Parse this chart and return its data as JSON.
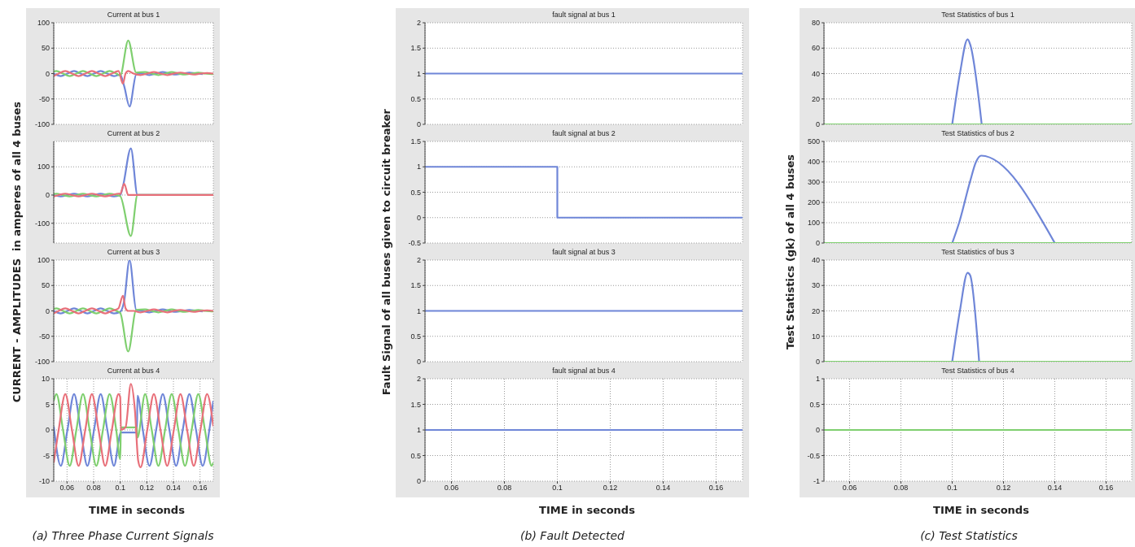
{
  "chart_data": [
    {
      "type": "line",
      "title": "Current at bus 1",
      "ylabel": "CURRENT - AMPLITUDES  in amperes of all 4 buses",
      "xlim": [
        0.05,
        0.17
      ],
      "xticks": [
        0.06,
        0.08,
        0.1,
        0.12,
        0.14,
        0.16
      ],
      "ylim": [
        -100,
        100
      ],
      "yticks": [
        -100,
        -50,
        0,
        50,
        100
      ],
      "grid": true,
      "tick_labels": "y",
      "series": [
        {
          "color": "#6f86d8",
          "x": [
            0.05,
            0.0553,
            0.0603,
            0.0653,
            0.0703,
            0.0753,
            0.0803,
            0.0853,
            0.0903,
            0.0953,
            0.1,
            0.103,
            0.107,
            0.112,
            0.117,
            0.122,
            0.127,
            0.132,
            0.137,
            0.142,
            0.147,
            0.152,
            0.157,
            0.162
          ],
          "values": [
            0,
            -5,
            0,
            5,
            0,
            -5,
            0,
            5,
            0,
            -5,
            -2,
            -25,
            -65,
            -2,
            0,
            -3,
            0,
            3,
            0,
            -2,
            0,
            2,
            0,
            -1
          ]
        },
        {
          "color": "#7fcf6f",
          "x": [
            0.05,
            0.052,
            0.057,
            0.062,
            0.067,
            0.072,
            0.077,
            0.082,
            0.087,
            0.092,
            0.097,
            0.1,
            0.106,
            0.112,
            0.1187,
            0.1237,
            0.1287,
            0.1337,
            0.1387,
            0.1437,
            0.1487,
            0.1537,
            0.1587,
            0.1637,
            0.1687,
            0.17
          ],
          "values": [
            4,
            5,
            0,
            -5,
            0,
            5,
            0,
            -5,
            0,
            5,
            0,
            -4,
            65,
            2,
            3,
            0,
            -3,
            0,
            3,
            0,
            -2,
            0,
            2,
            0,
            -1,
            -1
          ]
        },
        {
          "color": "#e8707a",
          "x": [
            0.05,
            0.0537,
            0.0587,
            0.0637,
            0.0687,
            0.0737,
            0.0787,
            0.0837,
            0.0887,
            0.0937,
            0.0987,
            0.102,
            0.104,
            0.106,
            0.11,
            0.1153,
            0.1203,
            0.1253,
            0.1303,
            0.1353,
            0.1403,
            0.1453,
            0.1503,
            0.1553,
            0.1603,
            0.1653,
            0.17
          ],
          "values": [
            -5,
            0,
            5,
            0,
            -5,
            0,
            5,
            0,
            -5,
            0,
            5,
            -20,
            0,
            5,
            0,
            -3,
            0,
            3,
            0,
            -3,
            0,
            2,
            0,
            -2,
            0,
            1,
            0
          ]
        }
      ]
    },
    {
      "type": "line",
      "title": "Current at bus 2",
      "xlim": [
        0.05,
        0.17
      ],
      "xticks": [
        0.06,
        0.08,
        0.1,
        0.12,
        0.14,
        0.16
      ],
      "ylim": [
        -170,
        190
      ],
      "yticks": [
        -100,
        0,
        100
      ],
      "grid": true,
      "tick_labels": "y",
      "series": [
        {
          "color": "#6f86d8",
          "x": [
            0.05,
            0.0553,
            0.0603,
            0.0653,
            0.0703,
            0.0753,
            0.0803,
            0.0853,
            0.0903,
            0.0953,
            0.1,
            0.102,
            0.108,
            0.113,
            0.17
          ],
          "values": [
            0,
            -5,
            0,
            5,
            0,
            -5,
            0,
            5,
            0,
            -5,
            0,
            30,
            165,
            0,
            0
          ]
        },
        {
          "color": "#7fcf6f",
          "x": [
            0.05,
            0.052,
            0.057,
            0.062,
            0.067,
            0.072,
            0.077,
            0.082,
            0.087,
            0.092,
            0.097,
            0.1,
            0.108,
            0.113,
            0.17
          ],
          "values": [
            4,
            5,
            0,
            -5,
            0,
            5,
            0,
            -5,
            0,
            5,
            0,
            -4,
            -145,
            0,
            0
          ]
        },
        {
          "color": "#e8707a",
          "x": [
            0.05,
            0.0537,
            0.0587,
            0.0637,
            0.0687,
            0.0737,
            0.0787,
            0.0837,
            0.0887,
            0.0937,
            0.0987,
            0.1,
            0.103,
            0.106,
            0.17
          ],
          "values": [
            -5,
            0,
            5,
            0,
            -5,
            0,
            5,
            0,
            -5,
            0,
            5,
            4,
            40,
            0,
            0
          ]
        }
      ]
    },
    {
      "type": "line",
      "title": "Current at bus 3",
      "xlim": [
        0.05,
        0.17
      ],
      "xticks": [
        0.06,
        0.08,
        0.1,
        0.12,
        0.14,
        0.16
      ],
      "ylim": [
        -100,
        100
      ],
      "yticks": [
        -100,
        -50,
        0,
        50,
        100
      ],
      "grid": true,
      "tick_labels": "y",
      "series": [
        {
          "color": "#6f86d8",
          "x": [
            0.05,
            0.0553,
            0.0603,
            0.0653,
            0.0703,
            0.0753,
            0.0803,
            0.0853,
            0.0903,
            0.0953,
            0.1,
            0.103,
            0.107,
            0.112,
            0.117,
            0.122,
            0.127,
            0.132,
            0.137,
            0.142,
            0.147,
            0.152,
            0.157,
            0.162
          ],
          "values": [
            0,
            -5,
            0,
            5,
            0,
            -5,
            0,
            5,
            0,
            -5,
            -2,
            20,
            100,
            2,
            0,
            -3,
            0,
            3,
            0,
            -2,
            0,
            2,
            0,
            -1
          ]
        },
        {
          "color": "#7fcf6f",
          "x": [
            0.05,
            0.052,
            0.057,
            0.062,
            0.067,
            0.072,
            0.077,
            0.082,
            0.087,
            0.092,
            0.097,
            0.1,
            0.106,
            0.112,
            0.1187,
            0.1237,
            0.1287,
            0.1337,
            0.1387,
            0.1437,
            0.1487,
            0.1537,
            0.1587,
            0.1637,
            0.1687,
            0.17
          ],
          "values": [
            4,
            5,
            0,
            -5,
            0,
            5,
            0,
            -5,
            0,
            5,
            0,
            -4,
            -80,
            2,
            3,
            0,
            -3,
            0,
            3,
            0,
            -2,
            0,
            2,
            0,
            -1,
            -1
          ]
        },
        {
          "color": "#e8707a",
          "x": [
            0.05,
            0.0537,
            0.0587,
            0.0637,
            0.0687,
            0.0737,
            0.0787,
            0.0837,
            0.0887,
            0.0937,
            0.0987,
            0.102,
            0.104,
            0.106,
            0.11,
            0.1153,
            0.1203,
            0.1253,
            0.1303,
            0.1353,
            0.1403,
            0.1453,
            0.1503,
            0.1553,
            0.1603,
            0.1653,
            0.17
          ],
          "values": [
            -5,
            0,
            5,
            0,
            -5,
            0,
            5,
            0,
            -5,
            0,
            5,
            30,
            5,
            0,
            0,
            -3,
            0,
            3,
            0,
            -3,
            0,
            2,
            0,
            -2,
            0,
            1,
            0
          ]
        }
      ]
    },
    {
      "type": "line",
      "title": "Current at bus 4",
      "xlabel": "TIME in seconds",
      "annotations": [
        "(a) Three Phase Current Signals"
      ],
      "xlim": [
        0.05,
        0.17
      ],
      "xticks": [
        0.06,
        0.08,
        0.1,
        0.12,
        0.14,
        0.16
      ],
      "ylim": [
        -10,
        10
      ],
      "yticks": [
        -10,
        -5,
        0,
        5,
        10
      ],
      "grid": true,
      "series": [
        {
          "color": "#6f86d8",
          "x": [
            0.05,
            0.0553,
            0.0603,
            0.0653,
            0.0703,
            0.0753,
            0.0803,
            0.0853,
            0.0903,
            0.0953,
            0.1,
            0.1005,
            0.1125,
            0.113,
            0.117,
            0.122,
            0.127,
            0.132,
            0.137,
            0.142,
            0.147,
            0.152,
            0.157,
            0.162,
            0.167,
            0.17
          ],
          "values": [
            0.7,
            -7,
            0,
            7,
            0,
            -7,
            0,
            7,
            0,
            -7,
            -0.7,
            -0.5,
            -0.5,
            6.7,
            0,
            -7,
            0,
            7,
            0,
            -7,
            0,
            7,
            0,
            -7,
            0,
            5.7
          ]
        },
        {
          "color": "#7fcf6f",
          "x": [
            0.05,
            0.052,
            0.057,
            0.062,
            0.067,
            0.072,
            0.077,
            0.082,
            0.087,
            0.092,
            0.097,
            0.1,
            0.1005,
            0.1125,
            0.113,
            0.1187,
            0.1237,
            0.1287,
            0.1337,
            0.1387,
            0.1437,
            0.1487,
            0.1537,
            0.1587,
            0.1637,
            0.1687,
            0.17
          ],
          "values": [
            5.7,
            7,
            0,
            -7,
            0,
            7,
            0,
            -7,
            0,
            7,
            0,
            -5.7,
            0.5,
            0.5,
            -1.5,
            7,
            0,
            -7,
            0,
            7,
            0,
            -7,
            0,
            7,
            0,
            -7,
            -6.4
          ]
        },
        {
          "color": "#e8707a",
          "x": [
            0.05,
            0.0537,
            0.0587,
            0.0637,
            0.0687,
            0.0737,
            0.0787,
            0.0837,
            0.0887,
            0.0937,
            0.0987,
            0.1,
            0.1005,
            0.104,
            0.108,
            0.111,
            0.1135,
            0.1153,
            0.1203,
            0.1253,
            0.1303,
            0.1353,
            0.1403,
            0.1453,
            0.1503,
            0.1553,
            0.1603,
            0.1653,
            0.17
          ],
          "values": [
            -6.4,
            0,
            7,
            0,
            -7,
            0,
            7,
            0,
            -7,
            0,
            7,
            6.4,
            0,
            0.5,
            9,
            4,
            -6,
            -7.3,
            0,
            7,
            0,
            -7,
            0,
            7,
            0,
            -7,
            0,
            7,
            0.7
          ]
        }
      ]
    },
    {
      "type": "step",
      "title": "fault signal at bus 1",
      "ylabel": "Fault Signal of all buses given to circuit breaker",
      "xlim": [
        0.05,
        0.17
      ],
      "xticks": [
        0.06,
        0.08,
        0.1,
        0.12,
        0.14,
        0.16
      ],
      "ylim": [
        0,
        2
      ],
      "yticks": [
        0,
        0.5,
        1,
        1.5,
        2
      ],
      "grid": true,
      "tick_labels": "y",
      "series": [
        {
          "color": "#6f86d8",
          "x": [
            0.05,
            0.17
          ],
          "values": [
            1,
            1
          ]
        }
      ]
    },
    {
      "type": "step",
      "title": "fault signal at bus 2",
      "xlim": [
        0.05,
        0.17
      ],
      "xticks": [
        0.06,
        0.08,
        0.1,
        0.12,
        0.14,
        0.16
      ],
      "ylim": [
        -0.5,
        1.5
      ],
      "yticks": [
        -0.5,
        0,
        0.5,
        1,
        1.5
      ],
      "grid": true,
      "tick_labels": "y",
      "series": [
        {
          "color": "#6f86d8",
          "x": [
            0.05,
            0.1,
            0.17
          ],
          "values": [
            1,
            0,
            0
          ]
        }
      ]
    },
    {
      "type": "step",
      "title": "fault signal at bus 3",
      "xlim": [
        0.05,
        0.17
      ],
      "xticks": [
        0.06,
        0.08,
        0.1,
        0.12,
        0.14,
        0.16
      ],
      "ylim": [
        0,
        2
      ],
      "yticks": [
        0,
        0.5,
        1,
        1.5,
        2
      ],
      "grid": true,
      "tick_labels": "y",
      "series": [
        {
          "color": "#6f86d8",
          "x": [
            0.05,
            0.17
          ],
          "values": [
            1,
            1
          ]
        }
      ]
    },
    {
      "type": "step",
      "title": "fault signal at bus 4",
      "xlabel": "TIME in seconds",
      "annotations": [
        "(b) Fault Detected"
      ],
      "xlim": [
        0.05,
        0.17
      ],
      "xticks": [
        0.06,
        0.08,
        0.1,
        0.12,
        0.14,
        0.16
      ],
      "ylim": [
        0,
        2
      ],
      "yticks": [
        0,
        0.5,
        1,
        1.5,
        2
      ],
      "grid": true,
      "series": [
        {
          "color": "#6f86d8",
          "x": [
            0.05,
            0.17
          ],
          "values": [
            1,
            1
          ]
        }
      ]
    },
    {
      "type": "line",
      "title": "Test Statistics of bus 1",
      "ylabel": "Test Statistics (gk) of all 4 buses",
      "xlim": [
        0.05,
        0.17
      ],
      "xticks": [
        0.06,
        0.08,
        0.1,
        0.12,
        0.14,
        0.16
      ],
      "ylim": [
        0,
        80
      ],
      "yticks": [
        0,
        20,
        40,
        60,
        80
      ],
      "grid": true,
      "tick_labels": "y",
      "series": [
        {
          "color": "#6f86d8",
          "x": [
            0.1,
            0.103,
            0.106,
            0.107,
            0.1115
          ],
          "values": [
            0,
            40,
            67,
            63,
            0
          ]
        },
        {
          "color": "#7fcf6f",
          "x": [
            0.05,
            0.17
          ],
          "values": [
            0,
            0
          ]
        }
      ]
    },
    {
      "type": "line",
      "title": "Test Statistics of bus 2",
      "xlim": [
        0.05,
        0.17
      ],
      "xticks": [
        0.06,
        0.08,
        0.1,
        0.12,
        0.14,
        0.16
      ],
      "ylim": [
        0,
        500
      ],
      "yticks": [
        0,
        100,
        200,
        300,
        400,
        500
      ],
      "grid": true,
      "tick_labels": "y",
      "series": [
        {
          "color": "#6f86d8",
          "x": [
            0.1,
            0.1027,
            0.1069,
            0.1093,
            0.1113,
            0.14
          ],
          "values": [
            0,
            100,
            300,
            400,
            430,
            0
          ]
        },
        {
          "color": "#7fcf6f",
          "x": [
            0.05,
            0.17
          ],
          "values": [
            0,
            0
          ]
        }
      ]
    },
    {
      "type": "line",
      "title": "Test Statistics of bus 3",
      "xlim": [
        0.05,
        0.17
      ],
      "xticks": [
        0.06,
        0.08,
        0.1,
        0.12,
        0.14,
        0.16
      ],
      "ylim": [
        0,
        40
      ],
      "yticks": [
        0,
        10,
        20,
        30,
        40
      ],
      "grid": true,
      "tick_labels": "y",
      "series": [
        {
          "color": "#6f86d8",
          "x": [
            0.1,
            0.103,
            0.106,
            0.107,
            0.1105
          ],
          "values": [
            0,
            20,
            35,
            34,
            0
          ]
        },
        {
          "color": "#7fcf6f",
          "x": [
            0.05,
            0.17
          ],
          "values": [
            0,
            0
          ]
        }
      ]
    },
    {
      "type": "line",
      "title": "Test Statistics of bus 4",
      "xlabel": "TIME in seconds",
      "annotations": [
        "(c) Test Statistics"
      ],
      "xlim": [
        0.05,
        0.17
      ],
      "xticks": [
        0.06,
        0.08,
        0.1,
        0.12,
        0.14,
        0.16
      ],
      "ylim": [
        -1,
        1
      ],
      "yticks": [
        -1,
        -0.5,
        0,
        0.5,
        1
      ],
      "grid": true,
      "series": [
        {
          "color": "#7fcf6f",
          "x": [
            0.05,
            0.17
          ],
          "values": [
            0,
            0
          ]
        }
      ]
    }
  ]
}
